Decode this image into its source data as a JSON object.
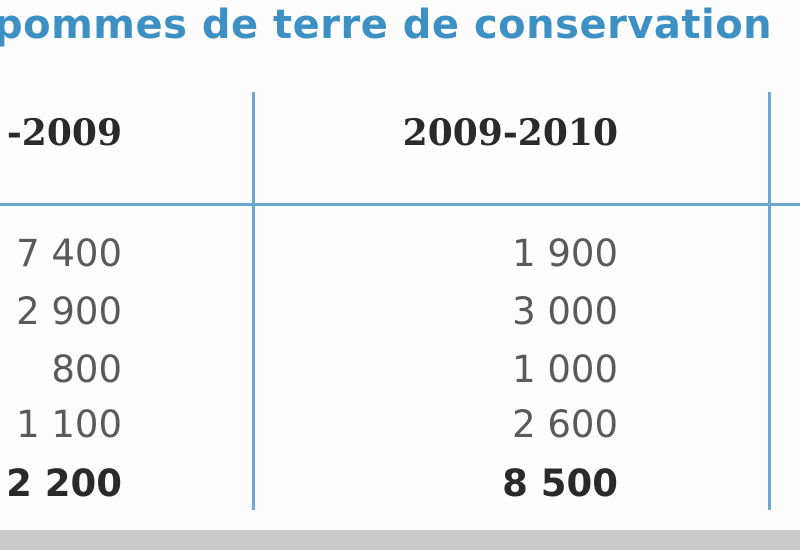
{
  "title": "pommes de terre de conservation",
  "table": {
    "header": [
      "-2009",
      "2009-2010"
    ],
    "rows": [
      [
        "7 400",
        "1 900"
      ],
      [
        "2 900",
        "3 000"
      ],
      [
        "800",
        "1 000"
      ],
      [
        "1 100",
        "2 600"
      ],
      [
        "2 200",
        "8 500"
      ]
    ]
  }
}
